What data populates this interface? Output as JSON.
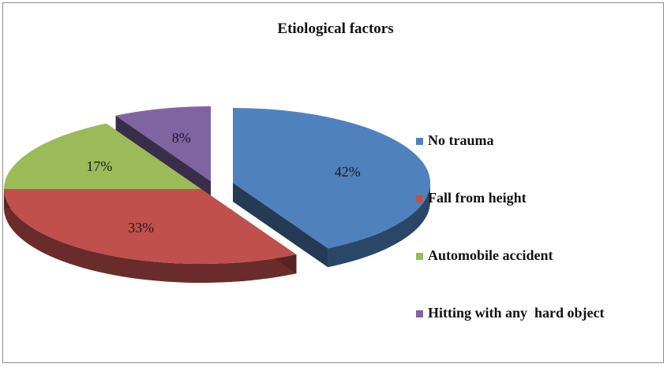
{
  "chart_data": {
    "type": "pie",
    "title": "Etiological factors",
    "categories": [
      "No trauma",
      "Fall from height",
      "Automobile accident",
      "Hitting with any  hard object"
    ],
    "values": [
      42,
      33,
      17,
      8
    ],
    "labels": [
      "42%",
      "33%",
      "17%",
      "8%"
    ],
    "colors": [
      "#4f81bd",
      "#c0504d",
      "#9bbb59",
      "#8064a2"
    ],
    "legend_position": "right",
    "style": "3d-exploded"
  }
}
